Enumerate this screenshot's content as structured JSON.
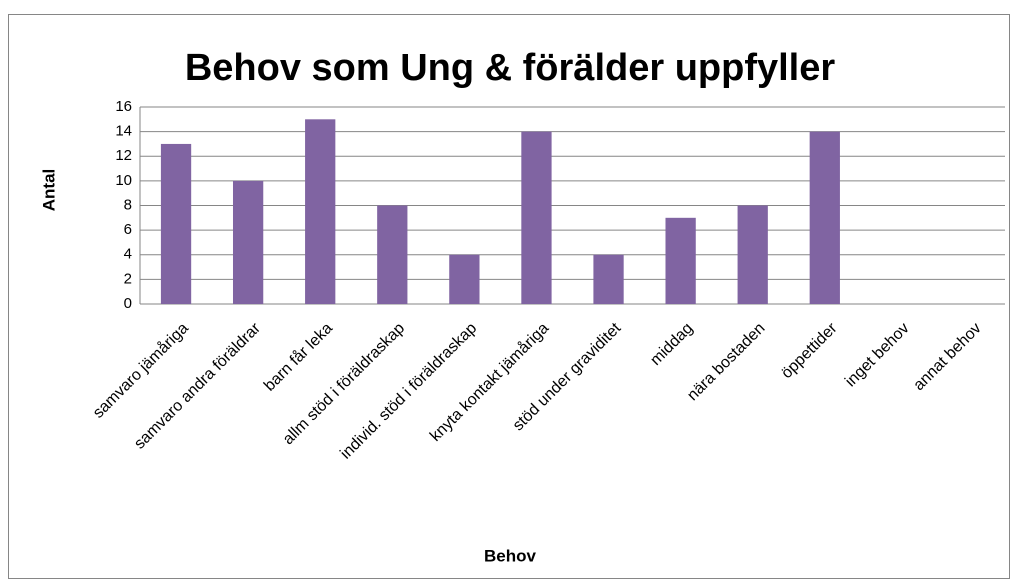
{
  "chart_data": {
    "type": "bar",
    "title": "Behov som Ung & förälder uppfyller",
    "x_label": "Behov",
    "y_label": "Antal",
    "categories": [
      "samvaro jämåriga",
      "samvaro andra föräldrar",
      "barn får leka",
      "allm stöd i föräldraskap",
      "individ. stöd i föräldraskap",
      "knyta kontakt jämåriga",
      "stöd under graviditet",
      "middag",
      "nära bostaden",
      "öppettider",
      "inget behov",
      "annat behov"
    ],
    "values": [
      13,
      10,
      15,
      8,
      4,
      14,
      4,
      7,
      8,
      14,
      0,
      0
    ],
    "color": "#8064a2",
    "ylim": [
      0,
      16
    ],
    "yticks": [
      0,
      2,
      4,
      6,
      8,
      10,
      12,
      14,
      16
    ],
    "grid": true
  }
}
